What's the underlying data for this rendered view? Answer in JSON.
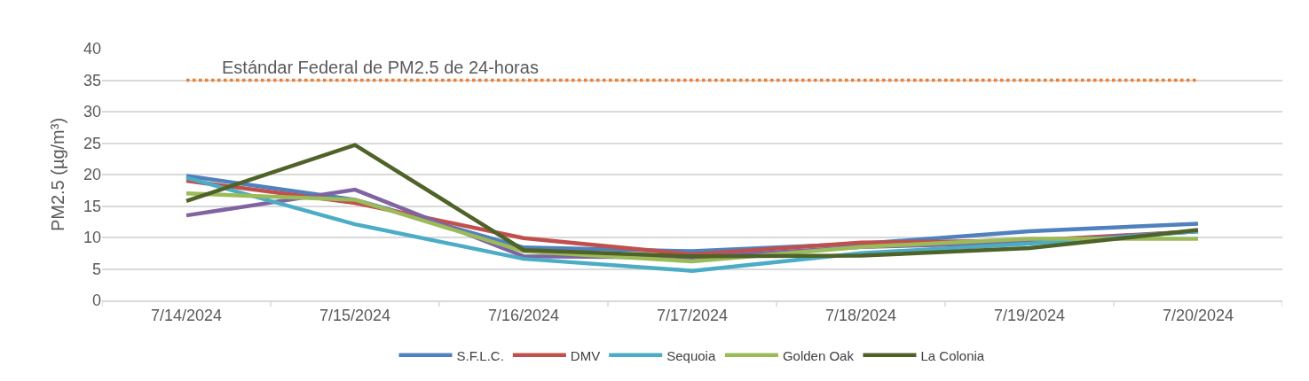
{
  "chart_data": {
    "type": "line",
    "ylabel": "PM2.5 (µg/m³)",
    "categories": [
      "7/14/2024",
      "7/15/2024",
      "7/16/2024",
      "7/17/2024",
      "7/18/2024",
      "7/19/2024",
      "7/20/2024"
    ],
    "series": [
      {
        "name": "S.F.L.C.",
        "color": "#4f81bd",
        "values": [
          19.8,
          16,
          8.4,
          7.8,
          9,
          11,
          12.2
        ]
      },
      {
        "name": "DMV",
        "color": "#c0504d",
        "values": [
          19,
          15.5,
          9.9,
          7.3,
          9.2,
          9.5,
          11
        ]
      },
      {
        "color": "#8064a2",
        "values": [
          13.5,
          17.6,
          7,
          6.8,
          8.5,
          9.2,
          11
        ]
      },
      {
        "name": "Sequoia",
        "color": "#4bacc6",
        "values": [
          19.5,
          12.1,
          6.6,
          4.7,
          7.5,
          9,
          11
        ]
      },
      {
        "name": "Golden Oak",
        "color": "#9bbb59",
        "values": [
          17,
          16,
          7.8,
          6.2,
          8.5,
          9.8,
          9.8
        ]
      },
      {
        "name": "La Colonia",
        "color": "#4f6228",
        "values": [
          15.8,
          24.7,
          8,
          7,
          7.1,
          8.3,
          11.2
        ]
      }
    ],
    "ylim": [
      0,
      40
    ],
    "yticks": [
      0,
      5,
      10,
      15,
      20,
      25,
      30,
      35,
      40
    ],
    "grid": "y",
    "legend": "bottom",
    "marker": "none",
    "line_style": "solid",
    "ref_lines": [
      {
        "axis": "y",
        "value": 35,
        "label": "Estándar Federal de PM2.5 de 24-horas",
        "color": "#ed7d31",
        "line_style": "dotted"
      }
    ]
  }
}
